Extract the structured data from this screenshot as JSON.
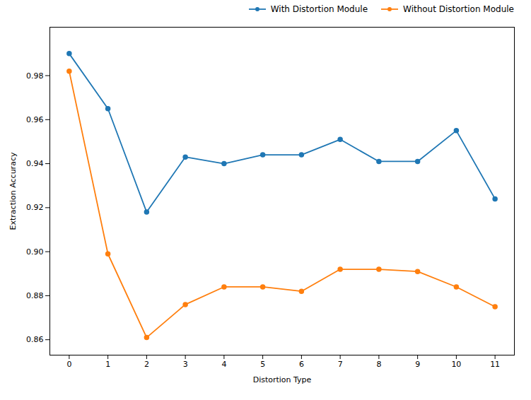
{
  "chart_data": {
    "type": "line",
    "x": [
      0,
      1,
      2,
      3,
      4,
      5,
      6,
      7,
      8,
      9,
      10,
      11
    ],
    "series": [
      {
        "name": "With Distortion Module",
        "color": "#1f77b4",
        "values": [
          0.99,
          0.965,
          0.918,
          0.943,
          0.94,
          0.944,
          0.944,
          0.951,
          0.941,
          0.941,
          0.955,
          0.924
        ]
      },
      {
        "name": "Without Distortion Module",
        "color": "#ff7f0e",
        "values": [
          0.982,
          0.899,
          0.861,
          0.876,
          0.884,
          0.884,
          0.882,
          0.892,
          0.892,
          0.891,
          0.884,
          0.875
        ]
      }
    ],
    "xlabel": "Distortion Type",
    "ylabel": "Extraction Accuracy",
    "xlim": [
      -0.5,
      11.5
    ],
    "ylim": [
      0.853,
      1.002
    ],
    "xticks": [
      0,
      1,
      2,
      3,
      4,
      5,
      6,
      7,
      8,
      9,
      10,
      11
    ],
    "yticks": [
      0.86,
      0.88,
      {
        "value": 0.9,
        "label": "0.90"
      },
      0.92,
      0.94,
      0.96,
      0.98
    ],
    "marker": "circle",
    "legend": "upper right",
    "grid": false
  }
}
